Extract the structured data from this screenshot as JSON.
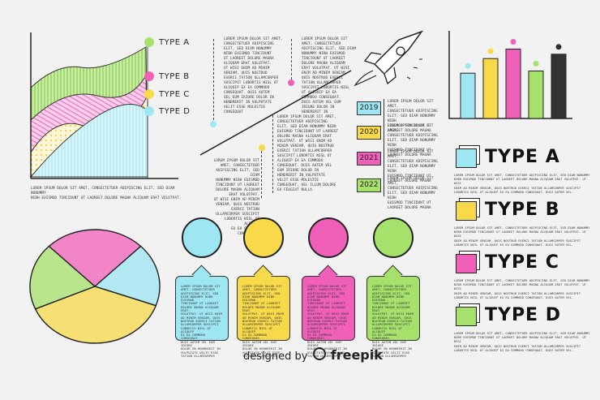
{
  "area_chart": {
    "labels": [
      "TYPE A",
      "TYPE B",
      "TYPE C",
      "TYPE D"
    ],
    "colors": [
      "#a6e26b",
      "#f060b8",
      "#f7d94a",
      "#9ee6f2"
    ],
    "caption_lines": [
      "LOREM IPSUM DOLOR SIT AMET, CONSECTETUER ADIPISCING ELIT, SED DIAM NONUMMY",
      "NIBH EUISMOD TINCIDUNT UT LAOREET DOLORE MAGNA ALIQUAM ERAT VOLUTPAT."
    ]
  },
  "text_blocks": {
    "top_left": [
      "LOREM IPSUM DOLOR SIT AMET,",
      "CONSECTETUER ADIPISCING",
      "ELIT, SED DIAM NONUMMY",
      "NIBH EUISMOD TINCIDUNT",
      "UT LAOREET DOLORE MAGNA",
      "ALIQUAM ERAT VOLUTPAT.",
      "UT WISI ENIM AD MINIM",
      "VENIAM, QUIS NOSTRUD",
      "EXERCI TATION ULLAMCORPER",
      "SUSCIPIT LOBORTIS NISL UT",
      "ALIQUIP EX EA COMMODO",
      "CONSEQUAT. DUIS AUTEM",
      "VEL EUM IRIURE DOLOR IN",
      "HENDRERIT IN VULPUTATE",
      "VELIT ESSE MOLESTIE",
      "CONSEQUAT"
    ],
    "top_mid": [
      "LOREM IPSUM DOLOR SIT",
      "AMET, CONSECTETUER",
      "ADIPISCING ELIT, SED DIAM",
      "NONUMMY NIBH EUISMOD",
      "TINCIDUNT UT LAOREET",
      "DOLORE MAGNA ALIQUAM",
      "ERAT VOLUTPAT. UT WISI",
      "ENIM AD MINIM VENIAM,",
      "QUIS NOSTRUD EXERCI",
      "TATION ULLAMCORPER",
      "SUSCIPIT LOBORTIS NISL",
      "UT ALIQUIP EX EA",
      "COMMODO CONSEQUAT.",
      "DUIS AUTEM VEL EUM",
      "IRIURE DOLOR IN",
      "HENDRERIT IN"
    ],
    "lower_left": [
      "LOREM IPSUM DOLOR SIT",
      "AMET, CONSECTETUER",
      "ADIPISCING ELIT, SED DIAM",
      "NONUMMY NIBH EUISMOD",
      "TINCIDUNT UT LAOREET",
      "DOLORE MAGNA ALIQUAM",
      "ERAT VOLUTPAT.",
      "UT WISI ENIM AD MINIM",
      "VENIAM, QUIS NOSTRUD",
      "EXERCI TATION",
      "ULLAMCORPER SUSCIPIT",
      "LOBORTIS NISL UT ALIQUIP",
      "EX EA COMMODO",
      "CONSEQUAT."
    ],
    "lower_mid": [
      "LOREM IPSUM DOLOR SIT AMET,",
      "CONSECTETUER ADIPISCING",
      "ELIT, SED DIAM NONUMMY NIBH",
      "EUISMOD TINCIDUNT UT LAOREET",
      "DOLORE MAGNA ALIQUAM ERAT",
      "VOLUTPAT. UT WISI ENIM AD",
      "MINIM VENIAM, QUIS NOSTRUD",
      "EXERCI TATION ULLAMCORPER",
      "SUSCIPIT LOBORTIS NISL UT",
      "ALIQUIP EX EA COMMODO",
      "CONSEQUAT. DUIS AUTEM VEL",
      "EUM IRIURE DOLOR IN",
      "HENDRERIT IN VULPUTATE",
      "VELIT ESSE MOLESTIE",
      "CONSEQUAT, VEL ILLUM DOLORE",
      "EU FEUGIAT NULLA."
    ]
  },
  "timeline": [
    {
      "year": "2019",
      "color": "#9ee6f2",
      "text": [
        "LOREM IPSUM DOLOR SIT AMET,",
        "CONSECTETUER ADIPISCING",
        "ELIT, SED DIAM NONUMMY NIBH",
        "EUISMOD TINCIDUNT UT",
        "LAOREET DOLORE MAGNA"
      ]
    },
    {
      "year": "2020",
      "color": "#f7d94a",
      "text": [
        "LOREM IPSUM DOLOR SIT AMET,",
        "CONSECTETUER ADIPISCING",
        "ELIT, SED DIAM NONUMMY NIBH",
        "EUISMOD TINCIDUNT UT",
        "LAOREET DOLORE MAGNA"
      ]
    },
    {
      "year": "2021",
      "color": "#f060b8",
      "text": [
        "LOREM IPSUM DOLOR SIT AMET,",
        "CONSECTETUER ADIPISCING",
        "ELIT, SED DIAM NONUMMY NIBH",
        "EUISMOD TINCIDUNT UT",
        "LAOREET DOLORE MAGNA"
      ]
    },
    {
      "year": "2022",
      "color": "#a6e26b",
      "text": [
        "LOREM IPSUM DOLOR SIT AMET,",
        "CONSECTETUER ADIPISCING",
        "ELIT, SED DIAM NONUMMY NIBH",
        "EUISMOD TINCIDUNT UT",
        "LAOREET DOLORE MAGNA"
      ]
    }
  ],
  "bar_chart": {
    "colors": [
      "#9ee6f2",
      "#f7d94a",
      "#f060b8",
      "#a6e26b",
      "#333333"
    ],
    "values": [
      62,
      82,
      95,
      65,
      88
    ]
  },
  "types": [
    {
      "label": "TYPE A",
      "color": "#9ee6f2",
      "text": [
        "LOREM IPSUM DOLOR SIT AMET, CONSECTETUER ADIPISCING ELIT, SED DIAM NONUMMY",
        "NIBH EUISMOD TINCIDUNT UT LAOREET DOLORE MAGNA ALIQUAM ERAT VOLUTPAT. UT WISI",
        "ENIM AD MINIM VENIAM, QUIS NOSTRUD EXERCI TATION ULLAMCORPER SUSCIPIT",
        "LOBORTIS NISL UT ALIQUIP EX EA COMMODO CONSEQUAT. DUIS AUTEM VEL."
      ]
    },
    {
      "label": "TYPE B",
      "color": "#f7d94a",
      "text": [
        "LOREM IPSUM DOLOR SIT AMET, CONSECTETUER ADIPISCING ELIT, SED DIAM NONUMMY",
        "NIBH EUISMOD TINCIDUNT UT LAOREET DOLORE MAGNA ALIQUAM ERAT VOLUTPAT. UT WISI",
        "ENIM AD MINIM VENIAM, QUIS NOSTRUD EXERCI TATION ULLAMCORPER SUSCIPIT",
        "LOBORTIS NISL UT ALIQUIP EX EA COMMODO CONSEQUAT. DUIS AUTEM VEL."
      ]
    },
    {
      "label": "TYPE C",
      "color": "#f060b8",
      "text": [
        "LOREM IPSUM DOLOR SIT AMET, CONSECTETUER ADIPISCING ELIT, SED DIAM NONUMMY",
        "NIBH EUISMOD TINCIDUNT UT LAOREET DOLORE MAGNA ALIQUAM ERAT VOLUTPAT. UT WISI",
        "ENIM AD MINIM VENIAM, QUIS NOSTRUD EXERCI TATION ULLAMCORPER SUSCIPIT",
        "LOBORTIS NISL UT ALIQUIP EX EA COMMODO CONSEQUAT. DUIS AUTEM VEL."
      ]
    },
    {
      "label": "TYPE D",
      "color": "#a6e26b",
      "text": [
        "LOREM IPSUM DOLOR SIT AMET, CONSECTETUER ADIPISCING ELIT, SED DIAM NONUMMY",
        "NIBH EUISMOD TINCIDUNT UT LAOREET DOLORE MAGNA ALIQUAM ERAT VOLUTPAT. UT WISI",
        "ENIM AD MINIM VENIAM, QUIS NOSTRUD EXERCI TATION ULLAMCORPER SUSCIPIT",
        "LOBORTIS NISL UT ALIQUIP EX EA COMMODO CONSEQUAT. DUIS AUTEM VEL."
      ]
    }
  ],
  "pie": {
    "colors": [
      "#f060b8",
      "#9ee6f2",
      "#f7d94a",
      "#a6e26b"
    ],
    "values": [
      25,
      18,
      38,
      19
    ]
  },
  "icon_cards": [
    {
      "icon": "magnifier-icon",
      "color": "#9ee6f2",
      "text": [
        "LOREM IPSUM DOLOR SIT",
        "AMET, CONSECTETUER",
        "ADIPISCING ELIT, SED",
        "DIAM NONUMMY NIBH EUISMOD",
        "TINCIDUNT UT LAOREET",
        "DOLORE MAGNA ALIQUAM ERAT",
        "VOLUTPAT. UT WISI ENIM",
        "AD MINIM VENIAM, QUIS",
        "NOSTRUD EXERCI TATION",
        "ULLAMCORPER SUSCIPIT",
        "LOBORTIS NISL UT ALIQUIP",
        "EX EA COMMODO CONSEQUAT.",
        "DUIS AUTEM VEL EUM IRIURE",
        "DOLOR IN HENDRERIT IN",
        "VULPUTATE VELIT ESSE",
        "TATION ULLAMCORPER"
      ]
    },
    {
      "icon": "lightbulb-icon",
      "color": "#f7d94a",
      "text": [
        "LOREM IPSUM DOLOR SIT",
        "AMET, CONSECTETUER",
        "ADIPISCING ELIT, SED",
        "DIAM NONUMMY NIBH EUISMOD",
        "TINCIDUNT UT LAOREET",
        "DOLORE MAGNA ALIQUAM ERAT",
        "VOLUTPAT. UT WISI ENIM",
        "AD MINIM VENIAM, QUIS",
        "NOSTRUD EXERCI TATION",
        "ULLAMCORPER SUSCIPIT",
        "LOBORTIS NISL UT ALIQUIP",
        "EX EA COMMODO CONSEQUAT.",
        "DUIS AUTEM VEL EUM IRIURE",
        "DOLOR IN HENDRERIT IN",
        "VULPUTATE VELIT ESSE",
        "TATION ULLAMCORPER"
      ]
    },
    {
      "icon": "rocket-icon",
      "color": "#f060b8",
      "text": [
        "LOREM IPSUM DOLOR SIT",
        "AMET, CONSECTETUER",
        "ADIPISCING ELIT, SED",
        "DIAM NONUMMY NIBH EUISMOD",
        "TINCIDUNT UT LAOREET",
        "DOLORE MAGNA ALIQUAM ERAT",
        "VOLUTPAT. UT WISI ENIM",
        "AD MINIM VENIAM, QUIS",
        "NOSTRUD EXERCI TATION",
        "ULLAMCORPER SUSCIPIT",
        "LOBORTIS NISL UT ALIQUIP",
        "EX EA COMMODO CONSEQUAT.",
        "DUIS AUTEM VEL EUM IRIURE",
        "DOLOR IN HENDRERIT IN",
        "VULPUTATE VELIT ESSE",
        "TATION ULLAMCORPER"
      ]
    },
    {
      "icon": "money-icon",
      "color": "#a6e26b",
      "text": [
        "LOREM IPSUM DOLOR SIT",
        "AMET, CONSECTETUER",
        "ADIPISCING ELIT, SED",
        "DIAM NONUMMY NIBH EUISMOD",
        "TINCIDUNT UT LAOREET",
        "DOLORE MAGNA ALIQUAM ERAT",
        "VOLUTPAT. UT WISI ENIM",
        "AD MINIM VENIAM, QUIS",
        "NOSTRUD EXERCI TATION",
        "ULLAMCORPER SUSCIPIT",
        "LOBORTIS NISL UT ALIQUIP",
        "EX EA COMMODO CONSEQUAT.",
        "DUIS AUTEM VEL EUM IRIURE",
        "DOLOR IN HENDRERIT IN",
        "VULPUTATE VELIT ESSE",
        "TATION ULLAMCORPER"
      ]
    }
  ],
  "footer": {
    "prefix": "designed by",
    "brand": "freepik",
    "logo_icon": "freepik-logo-icon"
  }
}
